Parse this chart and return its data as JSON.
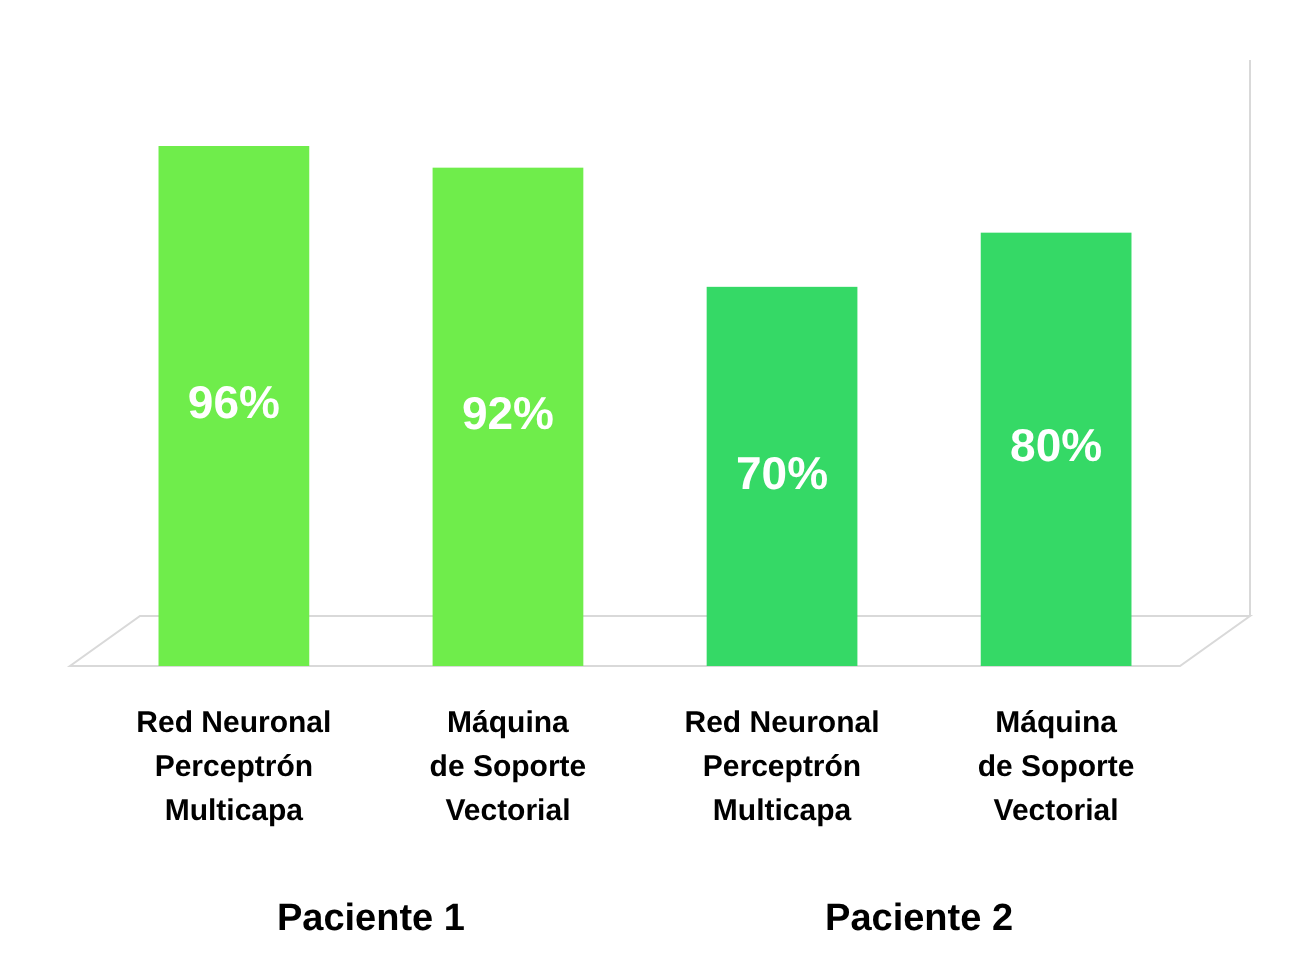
{
  "chart_data": {
    "type": "bar",
    "categories": [
      "Red Neuronal\nPerceptrón\nMulticapa",
      "Máquina\nde Soporte\nVectorial",
      "Red Neuronal\nPerceptrón\nMulticapa",
      "Máquina\nde Soporte\nVectorial"
    ],
    "values": [
      96,
      92,
      70,
      80
    ],
    "colors": [
      "#6fed4b",
      "#6fed4b",
      "#35d966",
      "#35d966"
    ],
    "value_labels": [
      "96%",
      "92%",
      "70%",
      "80%"
    ],
    "annotations": [
      "Paciente 1",
      "Paciente 2"
    ]
  }
}
